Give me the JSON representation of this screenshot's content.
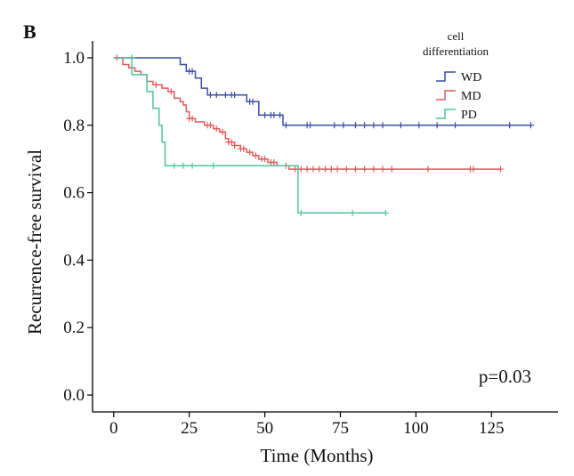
{
  "panel_letter": "B",
  "chart_data": {
    "type": "line",
    "step": true,
    "xlabel": "Time (Months)",
    "ylabel": "Recurrence-free survival",
    "xlim": [
      -7,
      147
    ],
    "ylim": [
      -0.05,
      1.05
    ],
    "xticks": [
      0,
      25,
      50,
      75,
      100,
      125
    ],
    "xtick_labels": [
      "0",
      "25",
      "50",
      "75",
      "100",
      "125"
    ],
    "yticks": [
      0.0,
      0.2,
      0.4,
      0.6,
      0.8,
      1.0
    ],
    "ytick_labels": [
      "0.0",
      "0.2",
      "0.4",
      "0.6",
      "0.8",
      "1.0"
    ],
    "grid": false,
    "legend": {
      "title": "cell differentiation",
      "title_lines": [
        "cell",
        "differentiation"
      ],
      "position": "top-right"
    },
    "annotation": "p=0.03",
    "series": [
      {
        "name": "WD",
        "color": "#3a4fa3",
        "x": [
          0,
          17,
          22,
          24,
          27,
          29,
          31,
          35,
          44,
          48,
          54,
          56,
          138
        ],
        "y": [
          1.0,
          1.0,
          0.98,
          0.96,
          0.94,
          0.91,
          0.89,
          0.89,
          0.87,
          0.83,
          0.83,
          0.8,
          0.8
        ],
        "censored_x": [
          6,
          25,
          26,
          32,
          34,
          37,
          39,
          40,
          45,
          46,
          50,
          52,
          53,
          55,
          57,
          64,
          65,
          73,
          76,
          80,
          83,
          86,
          89,
          95,
          101,
          107,
          113,
          131,
          138
        ],
        "censored_y": [
          1.0,
          0.96,
          0.96,
          0.89,
          0.89,
          0.89,
          0.89,
          0.89,
          0.87,
          0.87,
          0.83,
          0.83,
          0.83,
          0.83,
          0.8,
          0.8,
          0.8,
          0.8,
          0.8,
          0.8,
          0.8,
          0.8,
          0.8,
          0.8,
          0.8,
          0.8,
          0.8,
          0.8,
          0.8
        ]
      },
      {
        "name": "MD",
        "color": "#e05a5a",
        "x": [
          0,
          3,
          5,
          7,
          9,
          11,
          13,
          16,
          18,
          20,
          22,
          23,
          24,
          25,
          27,
          30,
          33,
          35,
          37,
          38,
          40,
          42,
          44,
          46,
          48,
          51,
          54,
          58,
          128
        ],
        "y": [
          1.0,
          0.98,
          0.97,
          0.96,
          0.95,
          0.93,
          0.92,
          0.91,
          0.9,
          0.88,
          0.87,
          0.86,
          0.84,
          0.82,
          0.81,
          0.8,
          0.79,
          0.78,
          0.76,
          0.75,
          0.74,
          0.73,
          0.72,
          0.71,
          0.7,
          0.69,
          0.68,
          0.67,
          0.67
        ],
        "censored_x": [
          1,
          14,
          19,
          25,
          26,
          31,
          32,
          34,
          36,
          38,
          39,
          40,
          42,
          43,
          45,
          47,
          49,
          50,
          52,
          53,
          57,
          60,
          62,
          64,
          66,
          68,
          70,
          72,
          74,
          77,
          80,
          83,
          86,
          89,
          92,
          104,
          118,
          119,
          128
        ],
        "censored_y": [
          1.0,
          0.92,
          0.9,
          0.82,
          0.82,
          0.8,
          0.8,
          0.79,
          0.78,
          0.75,
          0.75,
          0.74,
          0.73,
          0.73,
          0.72,
          0.71,
          0.7,
          0.7,
          0.69,
          0.69,
          0.68,
          0.67,
          0.67,
          0.67,
          0.67,
          0.67,
          0.67,
          0.67,
          0.67,
          0.67,
          0.67,
          0.67,
          0.67,
          0.67,
          0.67,
          0.67,
          0.67,
          0.67,
          0.67
        ]
      },
      {
        "name": "PD",
        "color": "#4fc3a0",
        "x": [
          0,
          6,
          11,
          13,
          15,
          16,
          17,
          60,
          61,
          90
        ],
        "y": [
          1.0,
          0.95,
          0.9,
          0.85,
          0.8,
          0.75,
          0.68,
          0.68,
          0.54,
          0.54
        ],
        "censored_x": [
          6,
          20,
          23,
          26,
          33,
          62,
          79,
          90
        ],
        "censored_y": [
          1.0,
          0.68,
          0.68,
          0.68,
          0.68,
          0.54,
          0.54,
          0.54
        ]
      }
    ]
  }
}
